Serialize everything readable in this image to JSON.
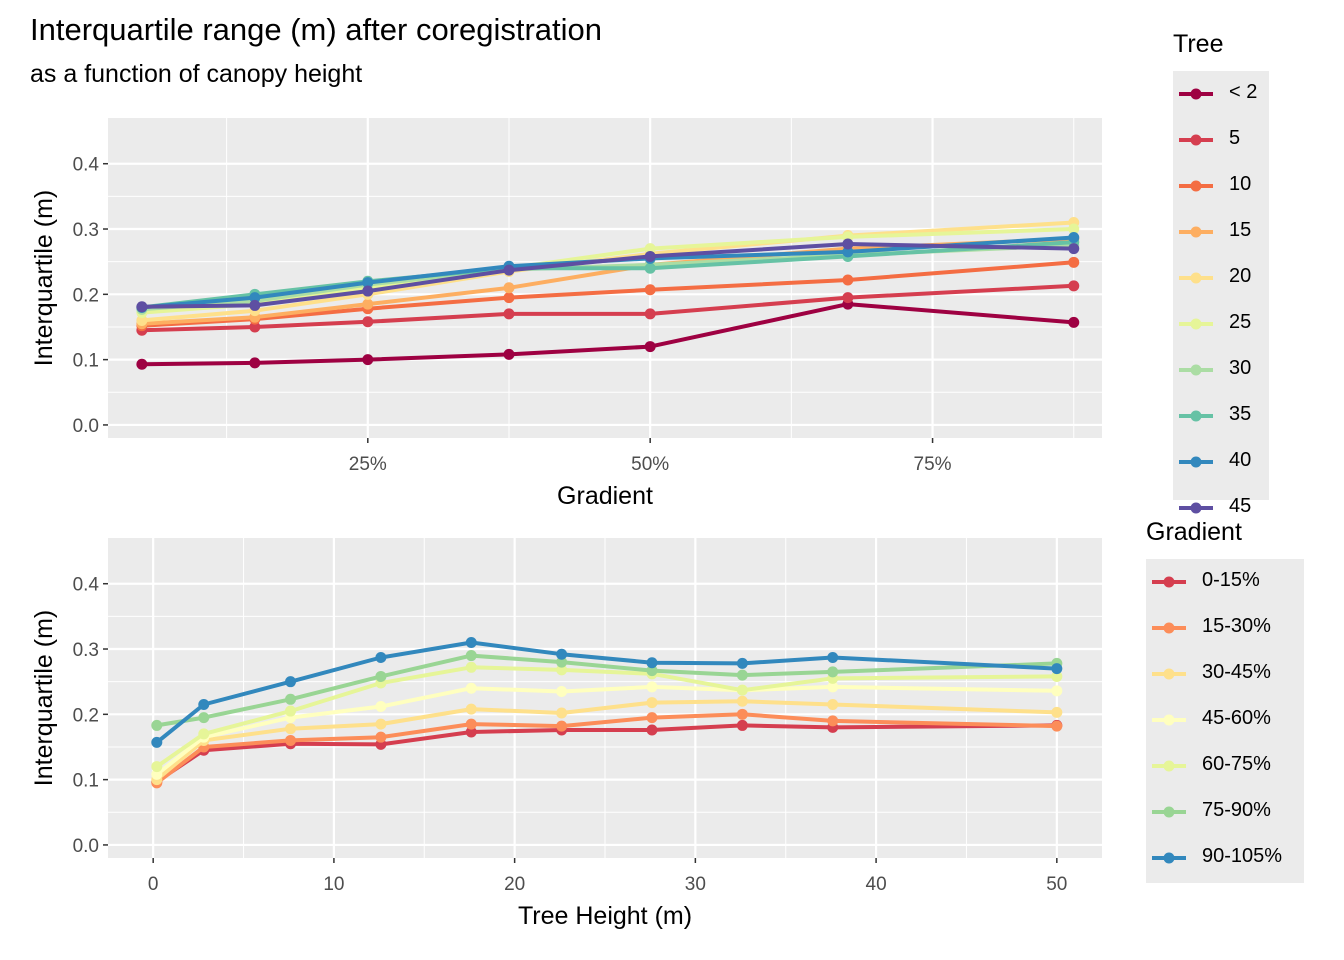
{
  "title": "Interquartile range (m) after coregistration",
  "subtitle": "as a function of canopy height",
  "chart_data": [
    {
      "type": "line",
      "xlabel": "Gradient",
      "ylabel": "Interquartile (m)",
      "xlim": [
        0.02,
        0.9
      ],
      "ylim": [
        -0.02,
        0.47
      ],
      "xticks": [
        0.25,
        0.5,
        0.75
      ],
      "xtick_labels": [
        "25%",
        "50%",
        "75%"
      ],
      "yticks": [
        0.0,
        0.1,
        0.2,
        0.3,
        0.4
      ],
      "ytick_labels": [
        "0.0",
        "0.1",
        "0.2",
        "0.3",
        "0.4"
      ],
      "grid": true,
      "legend_title": "Tree",
      "legend_position": "right",
      "x": [
        0.05,
        0.15,
        0.25,
        0.375,
        0.5,
        0.675,
        0.875
      ],
      "series": [
        {
          "name": "< 2",
          "color": "#9e0142",
          "values": [
            0.093,
            0.095,
            0.1,
            0.108,
            0.12,
            0.185,
            0.157
          ]
        },
        {
          "name": "5",
          "color": "#d53e4f",
          "values": [
            0.145,
            0.15,
            0.158,
            0.17,
            0.17,
            0.195,
            0.213
          ]
        },
        {
          "name": "10",
          "color": "#f46d43",
          "values": [
            0.152,
            0.162,
            0.178,
            0.195,
            0.207,
            0.222,
            0.249
          ]
        },
        {
          "name": "15",
          "color": "#fdae61",
          "values": [
            0.155,
            0.165,
            0.185,
            0.21,
            0.245,
            0.27,
            0.285
          ]
        },
        {
          "name": "20",
          "color": "#fee08b",
          "values": [
            0.16,
            0.175,
            0.2,
            0.235,
            0.262,
            0.29,
            0.31
          ]
        },
        {
          "name": "25",
          "color": "#e6f598",
          "values": [
            0.172,
            0.185,
            0.21,
            0.24,
            0.27,
            0.288,
            0.3
          ]
        },
        {
          "name": "30",
          "color": "#abdda4",
          "values": [
            0.177,
            0.19,
            0.215,
            0.238,
            0.245,
            0.26,
            0.275
          ]
        },
        {
          "name": "35",
          "color": "#66c2a5",
          "values": [
            0.18,
            0.2,
            0.22,
            0.24,
            0.24,
            0.258,
            0.28
          ]
        },
        {
          "name": "40",
          "color": "#3288bd",
          "values": [
            0.18,
            0.195,
            0.218,
            0.243,
            0.255,
            0.265,
            0.287
          ]
        },
        {
          "name": "45",
          "color": "#5e4fa2",
          "values": [
            0.181,
            0.183,
            0.205,
            0.237,
            0.258,
            0.277,
            0.27
          ]
        }
      ]
    },
    {
      "type": "line",
      "xlabel": "Tree Height (m)",
      "ylabel": "Interquartile (m)",
      "xlim": [
        -2.5,
        52.5
      ],
      "ylim": [
        -0.02,
        0.47
      ],
      "xticks": [
        0,
        10,
        20,
        30,
        40,
        50
      ],
      "xtick_labels": [
        "0",
        "10",
        "20",
        "30",
        "40",
        "50"
      ],
      "yticks": [
        0.0,
        0.1,
        0.2,
        0.3,
        0.4
      ],
      "ytick_labels": [
        "0.0",
        "0.1",
        "0.2",
        "0.3",
        "0.4"
      ],
      "grid": true,
      "legend_title": "Gradient",
      "legend_position": "right",
      "x": [
        0.2,
        2.8,
        7.6,
        12.6,
        17.6,
        22.6,
        27.6,
        32.6,
        37.6,
        50
      ],
      "series": [
        {
          "name": "0-15%",
          "color": "#d53e4f",
          "values": [
            0.097,
            0.145,
            0.155,
            0.154,
            0.173,
            0.176,
            0.176,
            0.183,
            0.18,
            0.183
          ]
        },
        {
          "name": "15-30%",
          "color": "#fc8d59",
          "values": [
            0.095,
            0.15,
            0.16,
            0.165,
            0.185,
            0.182,
            0.195,
            0.2,
            0.19,
            0.182
          ]
        },
        {
          "name": "30-45%",
          "color": "#fee08b",
          "values": [
            0.1,
            0.16,
            0.178,
            0.185,
            0.208,
            0.202,
            0.218,
            0.22,
            0.215,
            0.203
          ]
        },
        {
          "name": "45-60%",
          "color": "#ffffbf",
          "values": [
            0.108,
            0.165,
            0.195,
            0.212,
            0.24,
            0.235,
            0.242,
            0.237,
            0.242,
            0.236
          ]
        },
        {
          "name": "60-75%",
          "color": "#e6f598",
          "values": [
            0.12,
            0.17,
            0.205,
            0.248,
            0.272,
            0.268,
            0.262,
            0.237,
            0.255,
            0.258
          ]
        },
        {
          "name": "75-90%",
          "color": "#99d594",
          "values": [
            0.183,
            0.195,
            0.223,
            0.258,
            0.29,
            0.28,
            0.267,
            0.26,
            0.265,
            0.278
          ]
        },
        {
          "name": "90-105%",
          "color": "#3288bd",
          "values": [
            0.157,
            0.215,
            0.25,
            0.287,
            0.31,
            0.292,
            0.279,
            0.278,
            0.287,
            0.27
          ]
        }
      ]
    }
  ]
}
